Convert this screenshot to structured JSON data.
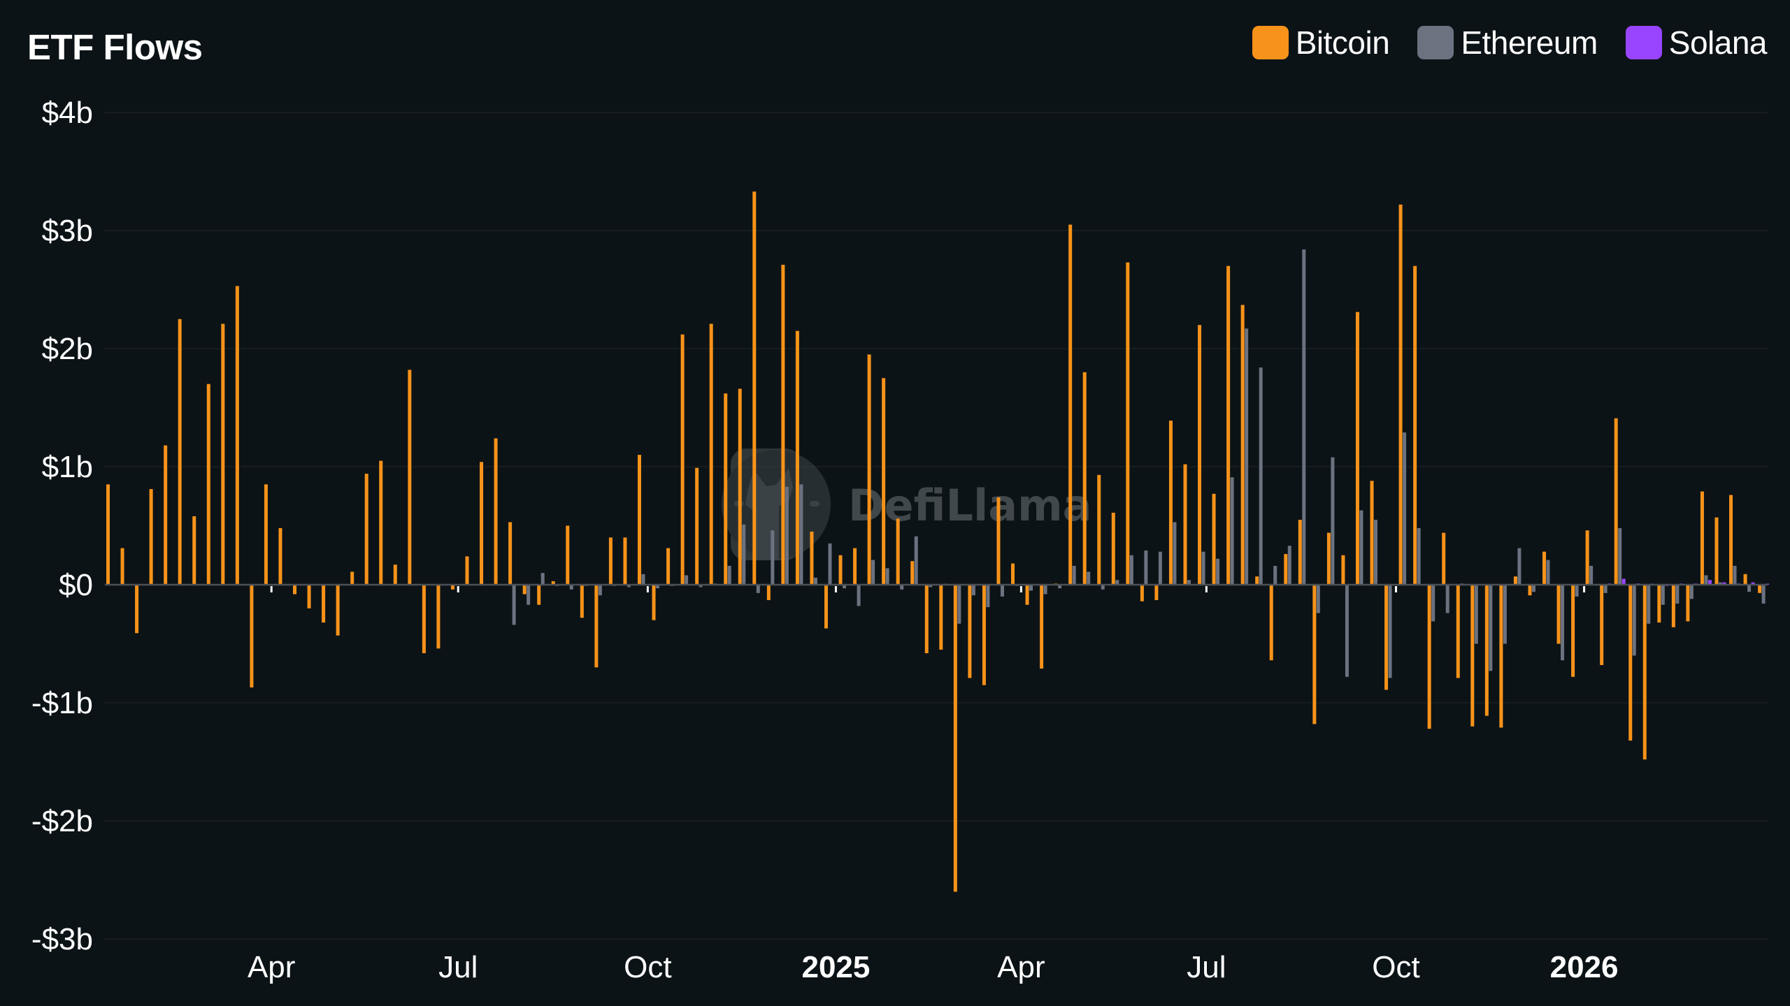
{
  "header": {
    "title": "ETF Flows"
  },
  "legend": [
    {
      "name": "Bitcoin",
      "color": "#f7931a",
      "icon": "square-swatch"
    },
    {
      "name": "Ethereum",
      "color": "#6b7280",
      "icon": "square-swatch"
    },
    {
      "name": "Solana",
      "color": "#9945ff",
      "icon": "square-swatch"
    }
  ],
  "watermark": {
    "text": "DefiLlama",
    "icon": "llama-logo-icon"
  },
  "colors": {
    "background": "#0c1316",
    "gridline": "#161c1f",
    "zero_axis": "#4b5056",
    "tick": "#ffffff"
  },
  "chart_data": {
    "type": "bar",
    "title": "ETF Flows",
    "xlabel": "",
    "ylabel": "",
    "unit": "USD billions (weekly net flow)",
    "ylim": [
      -3,
      4
    ],
    "yticks": [
      4,
      3,
      2,
      1,
      0,
      -1,
      -2,
      -3
    ],
    "ytick_labels": [
      "$4b",
      "$3b",
      "$2b",
      "$1b",
      "$0",
      "-$1b",
      "-$2b",
      "-$3b"
    ],
    "grid": true,
    "legend_position": "top-right",
    "xtick_labels": [
      {
        "label": "Apr",
        "index": 11.5,
        "bold": false
      },
      {
        "label": "Jul",
        "index": 24.5,
        "bold": false
      },
      {
        "label": "Oct",
        "index": 37.7,
        "bold": false
      },
      {
        "label": "2025",
        "index": 50.8,
        "bold": true
      },
      {
        "label": "Apr",
        "index": 63.7,
        "bold": false
      },
      {
        "label": "Jul",
        "index": 76.6,
        "bold": false
      },
      {
        "label": "Oct",
        "index": 89.8,
        "bold": false
      },
      {
        "label": "2026",
        "index": 102.9,
        "bold": true
      }
    ],
    "series": [
      {
        "name": "Bitcoin",
        "color": "#f7931a",
        "values": [
          0.85,
          0.31,
          -0.41,
          0.81,
          1.18,
          2.25,
          0.58,
          1.7,
          2.21,
          2.53,
          -0.87,
          0.85,
          0.48,
          -0.08,
          -0.2,
          -0.32,
          -0.43,
          0.11,
          0.94,
          1.05,
          0.17,
          1.82,
          -0.58,
          -0.54,
          -0.04,
          0.24,
          1.04,
          1.24,
          0.53,
          -0.08,
          -0.17,
          0.03,
          0.5,
          -0.28,
          -0.7,
          0.4,
          0.4,
          1.1,
          -0.3,
          0.31,
          2.12,
          0.99,
          2.21,
          1.62,
          1.66,
          3.33,
          -0.13,
          2.71,
          2.15,
          0.45,
          -0.37,
          0.25,
          0.31,
          1.95,
          1.75,
          0.56,
          0.2,
          -0.58,
          -0.55,
          -2.6,
          -0.79,
          -0.85,
          0.74,
          0.18,
          -0.17,
          -0.71,
          0.01,
          3.05,
          1.8,
          0.93,
          0.61,
          2.73,
          -0.14,
          -0.13,
          1.39,
          1.02,
          2.2,
          0.77,
          2.7,
          2.37,
          0.07,
          -0.64,
          0.26,
          0.55,
          -1.18,
          0.44,
          0.25,
          2.31,
          0.88,
          -0.89,
          3.22,
          2.7,
          -1.22,
          0.44,
          -0.79,
          -1.2,
          -1.11,
          -1.21,
          0.07,
          -0.09,
          0.28,
          -0.5,
          -0.78,
          0.46,
          -0.68,
          1.41,
          -1.32,
          -1.48,
          -0.32,
          -0.36,
          -0.31,
          0.79,
          0.57,
          0.76,
          0.09,
          -0.07
        ]
      },
      {
        "name": "Ethereum",
        "color": "#6b7280",
        "values": [
          null,
          null,
          null,
          null,
          null,
          null,
          null,
          null,
          null,
          null,
          null,
          null,
          null,
          null,
          null,
          null,
          null,
          null,
          null,
          null,
          null,
          null,
          null,
          null,
          null,
          null,
          null,
          null,
          -0.34,
          -0.17,
          0.1,
          -0.01,
          -0.04,
          -0.01,
          -0.09,
          -0.01,
          -0.02,
          0.09,
          -0.03,
          -0.01,
          0.08,
          -0.02,
          0.01,
          0.16,
          0.51,
          -0.07,
          0.46,
          0.83,
          0.85,
          0.06,
          0.35,
          -0.03,
          -0.18,
          0.21,
          0.14,
          -0.04,
          0.41,
          -0.02,
          0.0,
          -0.33,
          -0.09,
          -0.19,
          -0.1,
          -0.01,
          -0.05,
          -0.08,
          -0.03,
          0.16,
          0.11,
          -0.04,
          0.04,
          0.25,
          0.29,
          0.28,
          0.53,
          0.04,
          0.28,
          0.22,
          0.91,
          2.17,
          1.84,
          0.16,
          0.33,
          2.84,
          -0.24,
          1.08,
          -0.78,
          0.63,
          0.55,
          -0.79,
          1.29,
          0.48,
          -0.31,
          -0.24,
          0.01,
          -0.5,
          -0.73,
          -0.5,
          0.31,
          -0.06,
          0.21,
          -0.64,
          -0.1,
          0.16,
          -0.07,
          0.48,
          -0.6,
          -0.33,
          -0.17,
          -0.16,
          -0.12,
          0.08,
          0.02,
          0.16,
          -0.06,
          -0.16
        ]
      },
      {
        "name": "Solana",
        "color": "#9945ff",
        "values": [
          null,
          null,
          null,
          null,
          null,
          null,
          null,
          null,
          null,
          null,
          null,
          null,
          null,
          null,
          null,
          null,
          null,
          null,
          null,
          null,
          null,
          null,
          null,
          null,
          null,
          null,
          null,
          null,
          null,
          null,
          null,
          null,
          null,
          null,
          null,
          null,
          null,
          null,
          null,
          null,
          null,
          null,
          null,
          null,
          null,
          null,
          null,
          null,
          null,
          null,
          null,
          null,
          null,
          null,
          null,
          null,
          null,
          null,
          null,
          null,
          null,
          null,
          null,
          null,
          null,
          null,
          null,
          null,
          null,
          null,
          null,
          null,
          null,
          null,
          null,
          null,
          null,
          null,
          null,
          null,
          null,
          null,
          null,
          null,
          null,
          null,
          null,
          null,
          null,
          null,
          null,
          null,
          null,
          null,
          null,
          null,
          null,
          null,
          null,
          null,
          null,
          null,
          null,
          null,
          0.01,
          0.05,
          0.01,
          0.0,
          -0.01,
          0.01,
          0.01,
          0.04,
          0.02,
          0.01,
          0.02,
          0.0
        ]
      }
    ]
  }
}
